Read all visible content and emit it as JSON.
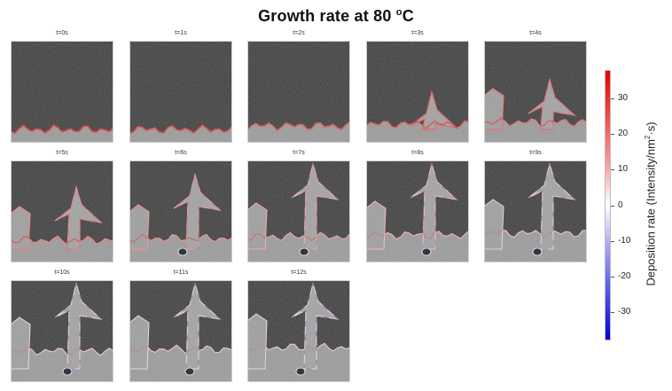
{
  "chart_data": {
    "type": "heatmap",
    "title": "Growth rate at 80 oC",
    "title_parts": {
      "main": "Growth rate at 80 ",
      "superscript": "o",
      "suffix": "C"
    },
    "layout": {
      "rows": 3,
      "cols": 5,
      "panel_count": 13
    },
    "panels": [
      {
        "label": "t=0s",
        "row": 0,
        "col": 0
      },
      {
        "label": "t=1s",
        "row": 0,
        "col": 1
      },
      {
        "label": "t=2s",
        "row": 0,
        "col": 2
      },
      {
        "label": "t=3s",
        "row": 0,
        "col": 3
      },
      {
        "label": "t=4s",
        "row": 0,
        "col": 4
      },
      {
        "label": "t=5s",
        "row": 1,
        "col": 0
      },
      {
        "label": "t=6s",
        "row": 1,
        "col": 1
      },
      {
        "label": "t=7s",
        "row": 1,
        "col": 2
      },
      {
        "label": "t=8s",
        "row": 1,
        "col": 3
      },
      {
        "label": "t=9s",
        "row": 1,
        "col": 4
      },
      {
        "label": "t=10s",
        "row": 2,
        "col": 0
      },
      {
        "label": "t=11s",
        "row": 2,
        "col": 1
      },
      {
        "label": "t=12s",
        "row": 2,
        "col": 2
      }
    ],
    "colorbar": {
      "label": "Deposition rate (Intensity/nm2·s)",
      "label_parts": {
        "pre": "Deposition rate (Intensity/nm",
        "sup": "2",
        "post": "·s)"
      },
      "ticks": [
        30,
        20,
        10,
        0,
        -10,
        -20,
        -30
      ],
      "range": [
        -38,
        38
      ],
      "colormap": "bwr",
      "colors": {
        "max": "#e60000",
        "mid": "#ffffff",
        "min": "#0000d8"
      }
    },
    "xlabel": "",
    "ylabel": ""
  }
}
